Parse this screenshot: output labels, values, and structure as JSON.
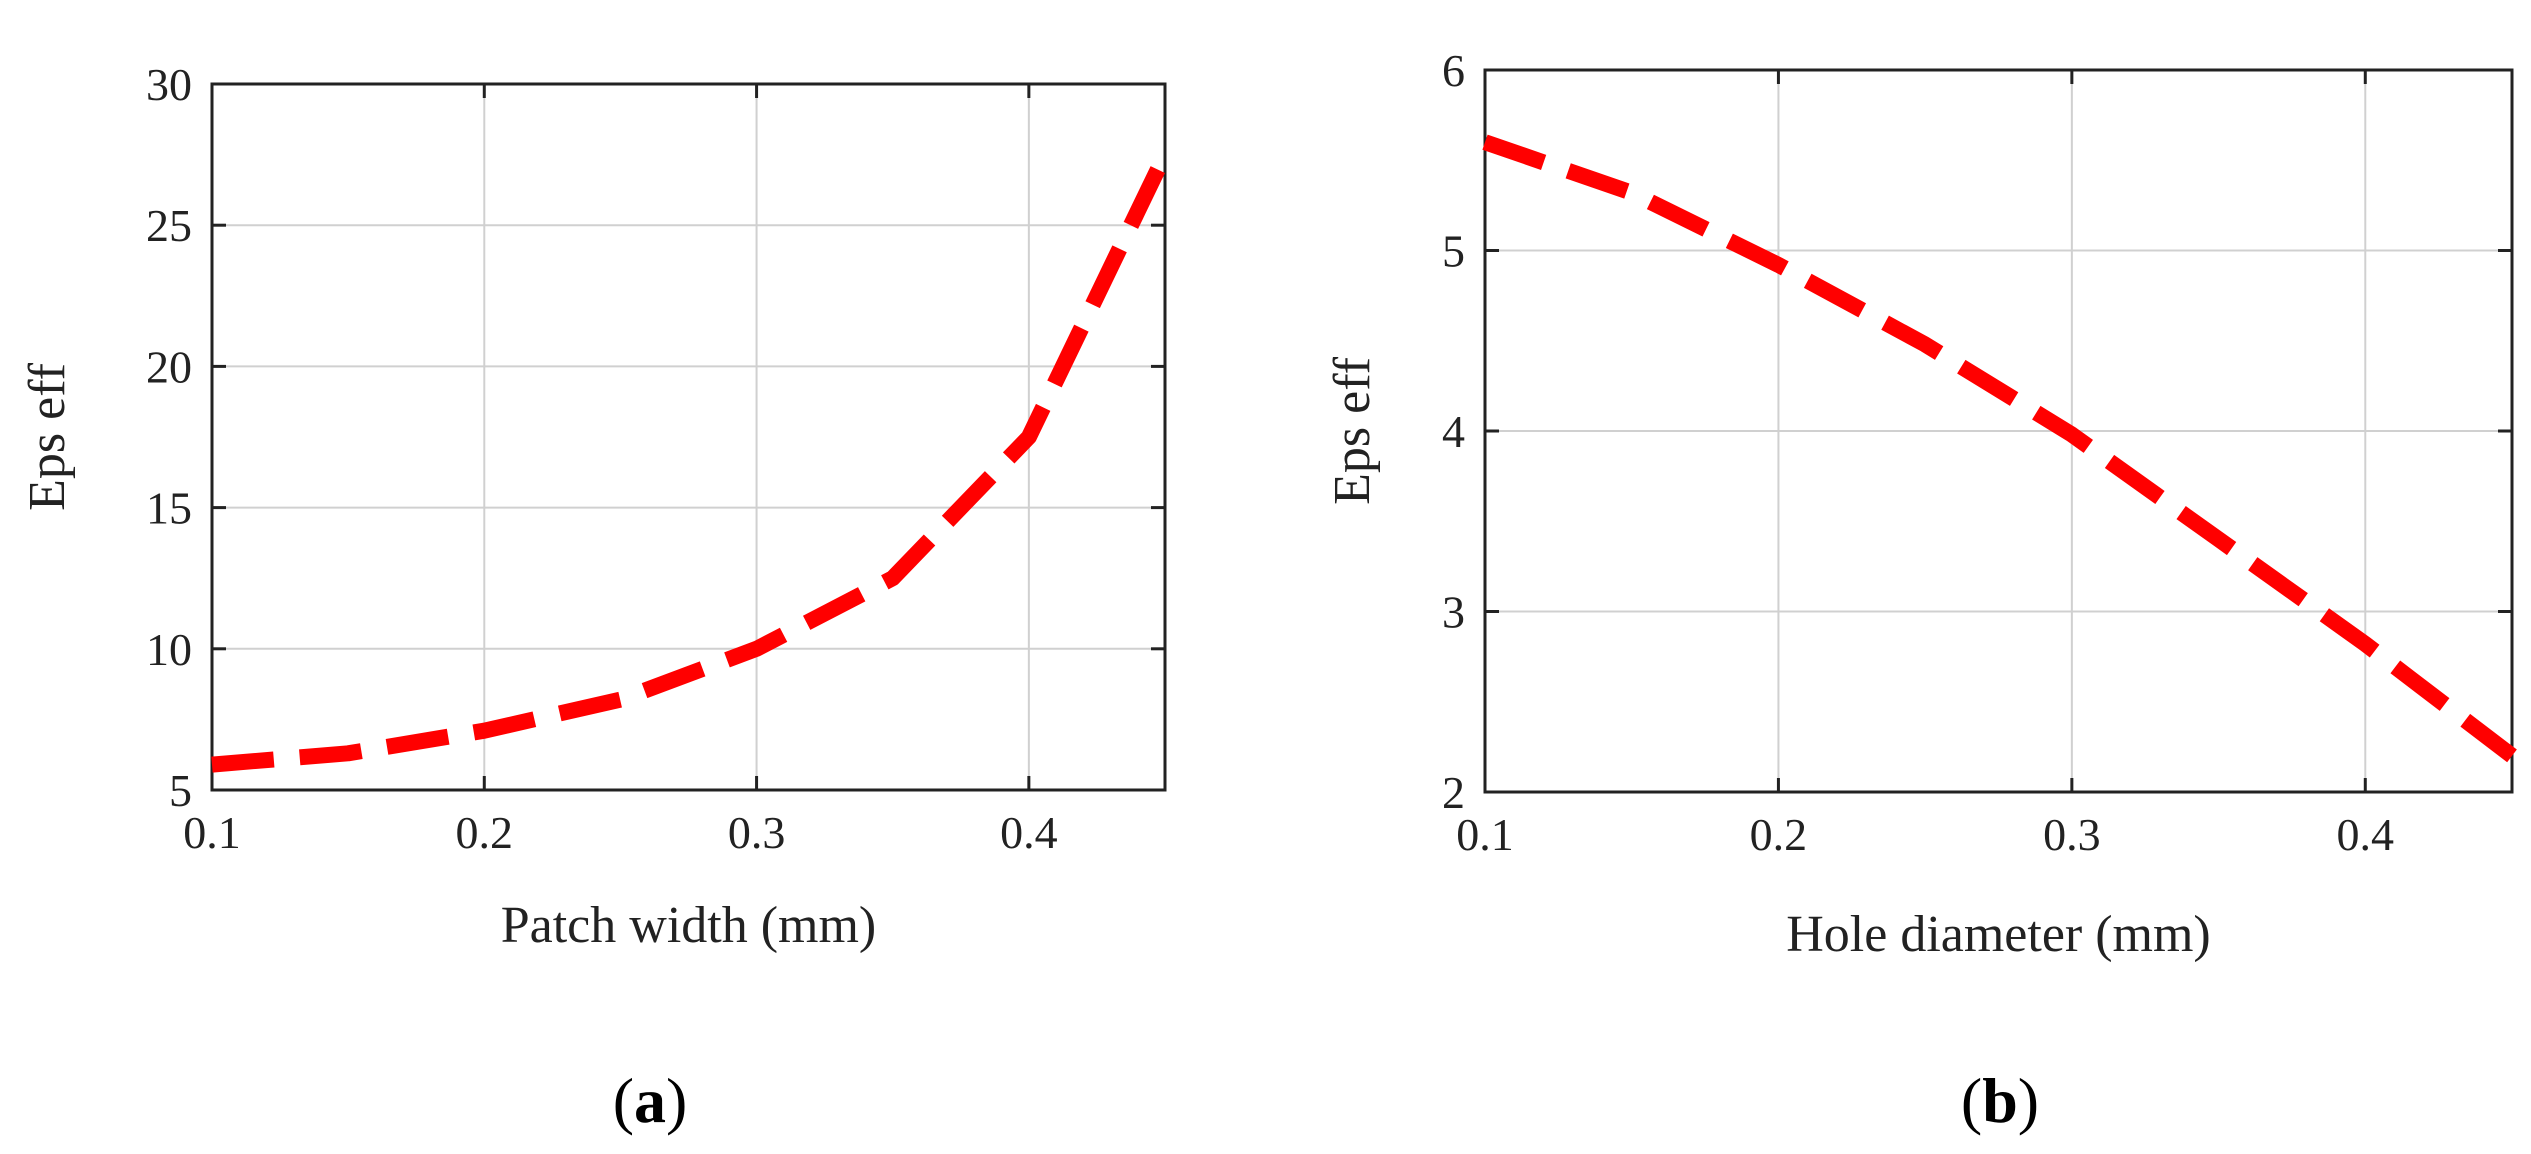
{
  "colors": {
    "series": "#ff0000",
    "grid": "#d0d0d0",
    "axis": "#222222",
    "background": "#ffffff"
  },
  "chart_data": [
    {
      "type": "line",
      "panel_label": "(a)",
      "panel_letter": "a",
      "panel_open": "(",
      "panel_close": ")",
      "xlabel": "Patch width (mm)",
      "ylabel": "Eps eff",
      "xlim": [
        0.1,
        0.45
      ],
      "ylim": [
        5,
        30
      ],
      "x_ticks": [
        0.1,
        0.2,
        0.3,
        0.4
      ],
      "x_tick_labels": [
        "0.1",
        "0.2",
        "0.3",
        "0.4"
      ],
      "y_ticks": [
        5,
        10,
        15,
        20,
        25,
        30
      ],
      "y_tick_labels": [
        "5",
        "10",
        "15",
        "20",
        "25",
        "30"
      ],
      "grid": true,
      "line_style": "dashed",
      "series": [
        {
          "name": "Eps eff",
          "x": [
            0.1,
            0.15,
            0.2,
            0.25,
            0.3,
            0.35,
            0.4,
            0.45
          ],
          "values": [
            5.9,
            6.3,
            7.1,
            8.2,
            10.0,
            12.5,
            17.5,
            27.5
          ]
        }
      ]
    },
    {
      "type": "line",
      "panel_label": "(b)",
      "panel_letter": "b",
      "panel_open": "(",
      "panel_close": ")",
      "xlabel": "Hole diameter (mm)",
      "ylabel": "Eps eff",
      "xlim": [
        0.1,
        0.45
      ],
      "ylim": [
        2,
        6
      ],
      "x_ticks": [
        0.1,
        0.2,
        0.3,
        0.4
      ],
      "x_tick_labels": [
        "0.1",
        "0.2",
        "0.3",
        "0.4"
      ],
      "y_ticks": [
        2,
        3,
        4,
        5,
        6
      ],
      "y_tick_labels": [
        "2",
        "3",
        "4",
        "5",
        "6"
      ],
      "grid": true,
      "line_style": "dashed",
      "series": [
        {
          "name": "Eps eff",
          "x": [
            0.1,
            0.15,
            0.2,
            0.25,
            0.3,
            0.35,
            0.4,
            0.45
          ],
          "values": [
            5.6,
            5.32,
            4.92,
            4.48,
            3.98,
            3.4,
            2.82,
            2.2
          ]
        }
      ]
    }
  ]
}
